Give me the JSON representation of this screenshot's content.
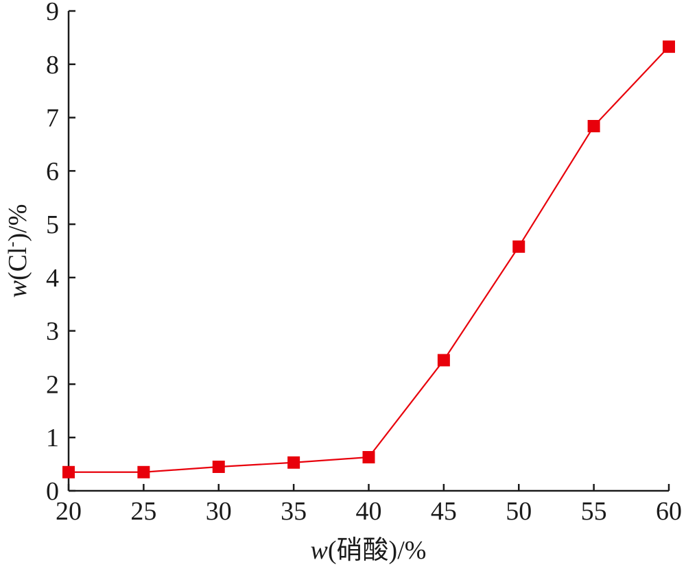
{
  "chart_data": {
    "type": "line",
    "title": "",
    "xlabel": {
      "var": "w",
      "rest": "(硝酸)/%"
    },
    "ylabel": {
      "var": "w",
      "rest": "(Cl",
      "sup": "-",
      "tail": ")/%"
    },
    "xlim": [
      20,
      60
    ],
    "ylim": [
      0,
      9
    ],
    "xticks": [
      "20",
      "25",
      "30",
      "35",
      "40",
      "45",
      "50",
      "55",
      "60"
    ],
    "yticks": [
      "0",
      "1",
      "2",
      "3",
      "4",
      "5",
      "6",
      "7",
      "8",
      "9"
    ],
    "grid": false,
    "series": [
      {
        "color": "#e8000b",
        "marker": "square",
        "x": [
          20,
          25,
          30,
          35,
          40,
          45,
          50,
          55,
          60
        ],
        "y": [
          0.35,
          0.35,
          0.45,
          0.53,
          0.63,
          2.45,
          4.58,
          6.84,
          8.33
        ]
      }
    ]
  }
}
